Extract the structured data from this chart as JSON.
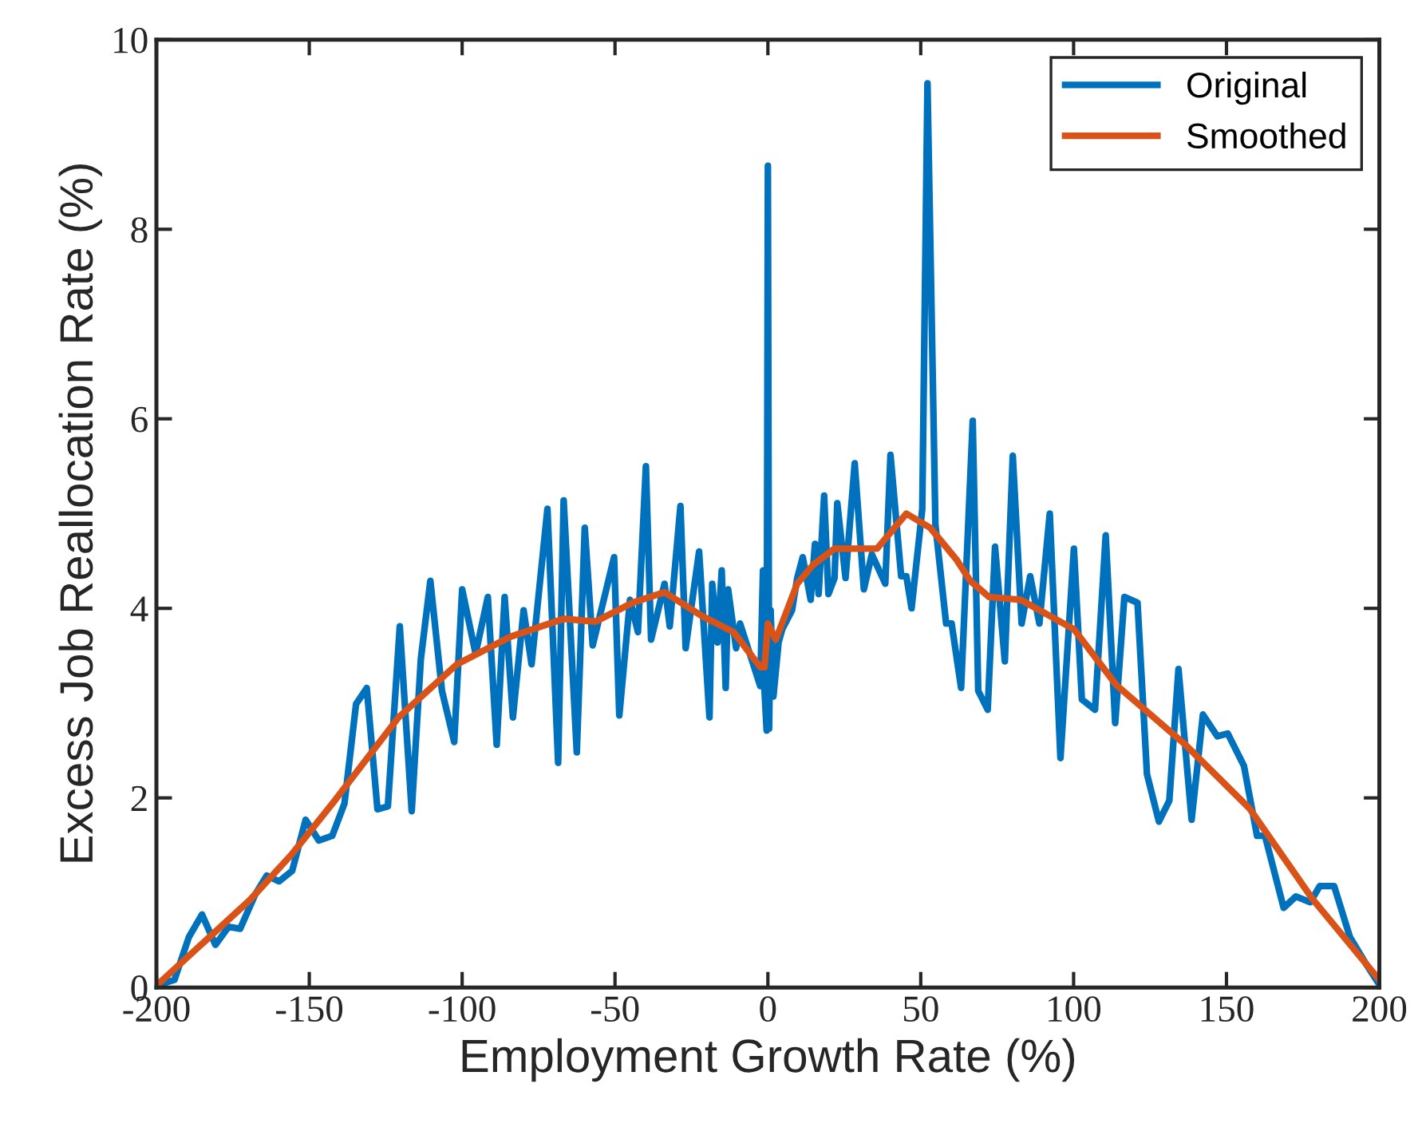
{
  "chart_data": {
    "type": "line",
    "xlabel": "Employment Growth Rate (%)",
    "ylabel": "Excess Job Reallocation Rate (%)",
    "xlim": [
      -200,
      200
    ],
    "ylim": [
      0,
      10
    ],
    "xticks": [
      -200,
      -150,
      -100,
      -50,
      0,
      50,
      100,
      150,
      200
    ],
    "yticks": [
      0,
      2,
      4,
      6,
      8,
      10
    ],
    "grid": false,
    "legend": "top right",
    "line_style": "solid",
    "marker": "none",
    "series": [
      {
        "name": "Original",
        "color": "#0072bd",
        "x": [
          -200,
          -194.1,
          -189.4,
          -185.1,
          -180.7,
          -176.4,
          -172.6,
          -167.7,
          -163.9,
          -159.9,
          -155.6,
          -151.2,
          -146.9,
          -142.5,
          -138.5,
          -134.7,
          -131.2,
          -127.7,
          -124.3,
          -120.4,
          -116.5,
          -113.5,
          -110.4,
          -106.6,
          -102.6,
          -100.0,
          -95.6,
          -91.6,
          -88.7,
          -86.1,
          -83.4,
          -79.9,
          -77.3,
          -72.1,
          -68.6,
          -66.8,
          -62.5,
          -59.9,
          -57.3,
          -50.3,
          -48.6,
          -45.1,
          -42.5,
          -39.9,
          -38.2,
          -33.8,
          -32.1,
          -28.6,
          -26.9,
          -22.5,
          -19.1,
          -18.2,
          -16.5,
          -15.1,
          -13.8,
          -13.0,
          -10.4,
          -9.1,
          -2.5,
          -1.6,
          -1.1,
          -0.4,
          0.0,
          0.4,
          0.9,
          1.8,
          3.5,
          4.7,
          7.9,
          9.6,
          11.4,
          14.0,
          15.4,
          16.6,
          18.4,
          19.8,
          21.8,
          22.7,
          25.4,
          28.4,
          31.4,
          34.0,
          38.4,
          40.1,
          43.6,
          45.3,
          47.0,
          50.5,
          52.2,
          54.8,
          58.3,
          60.1,
          63.2,
          67.0,
          68.8,
          71.9,
          74.3,
          77.5,
          80.1,
          83.0,
          85.8,
          88.8,
          92.2,
          95.7,
          100.1,
          102.7,
          107.0,
          110.5,
          113.6,
          116.6,
          120.9,
          124.0,
          127.9,
          131.3,
          134.3,
          138.6,
          142.3,
          147.0,
          150.4,
          155.7,
          160.0,
          162.6,
          168.7,
          172.7,
          177.4,
          180.5,
          185.2,
          190.4,
          195.6,
          200
        ],
        "values": [
          0.02,
          0.08,
          0.53,
          0.77,
          0.45,
          0.64,
          0.62,
          0.98,
          1.18,
          1.12,
          1.23,
          1.77,
          1.55,
          1.6,
          1.94,
          2.99,
          3.16,
          1.88,
          1.91,
          3.81,
          1.86,
          3.47,
          4.29,
          3.13,
          2.59,
          4.2,
          3.52,
          4.12,
          2.56,
          4.12,
          2.85,
          3.98,
          3.41,
          5.05,
          2.37,
          5.14,
          2.48,
          4.85,
          3.61,
          4.54,
          2.87,
          4.09,
          3.75,
          5.5,
          3.67,
          4.26,
          3.81,
          5.08,
          3.58,
          4.6,
          2.85,
          4.26,
          3.64,
          4.4,
          3.16,
          4.2,
          3.58,
          3.84,
          3.18,
          4.4,
          3.13,
          2.71,
          8.67,
          2.73,
          3.98,
          3.07,
          3.64,
          3.78,
          3.98,
          4.32,
          4.54,
          4.09,
          4.68,
          4.15,
          5.19,
          4.15,
          4.32,
          5.11,
          4.32,
          5.53,
          4.2,
          4.57,
          4.26,
          5.62,
          4.34,
          4.34,
          4.0,
          5.05,
          9.54,
          4.88,
          3.84,
          3.84,
          3.16,
          5.98,
          3.13,
          2.93,
          4.65,
          3.44,
          5.61,
          3.84,
          4.34,
          3.84,
          5.0,
          2.42,
          4.63,
          3.04,
          2.93,
          4.77,
          2.79,
          4.12,
          4.06,
          2.25,
          1.75,
          1.97,
          3.36,
          1.77,
          2.88,
          2.65,
          2.68,
          2.34,
          1.6,
          1.6,
          0.84,
          0.96,
          0.9,
          1.07,
          1.07,
          0.53,
          0.25,
          0.03
        ]
      },
      {
        "name": "Smoothed",
        "color": "#d95319",
        "x": [
          -200,
          -169.5,
          -155.6,
          -141.7,
          -120.8,
          -101.7,
          -84.2,
          -66.8,
          -56.4,
          -44.2,
          -33.8,
          -21.6,
          -11.2,
          -2.5,
          -1.1,
          0,
          2.6,
          9.6,
          14.8,
          21.8,
          35.7,
          45.3,
          53.1,
          61.8,
          66.2,
          72.3,
          82.7,
          100.1,
          114,
          136.6,
          157.5,
          178.2,
          200
        ],
        "values": [
          0.02,
          0.92,
          1.41,
          1.97,
          2.85,
          3.41,
          3.7,
          3.89,
          3.86,
          4.06,
          4.17,
          3.92,
          3.75,
          3.38,
          3.38,
          3.84,
          3.67,
          4.26,
          4.46,
          4.63,
          4.63,
          5.0,
          4.85,
          4.51,
          4.29,
          4.12,
          4.09,
          3.78,
          3.19,
          2.56,
          1.89,
          0.93,
          0.08
        ]
      }
    ]
  }
}
